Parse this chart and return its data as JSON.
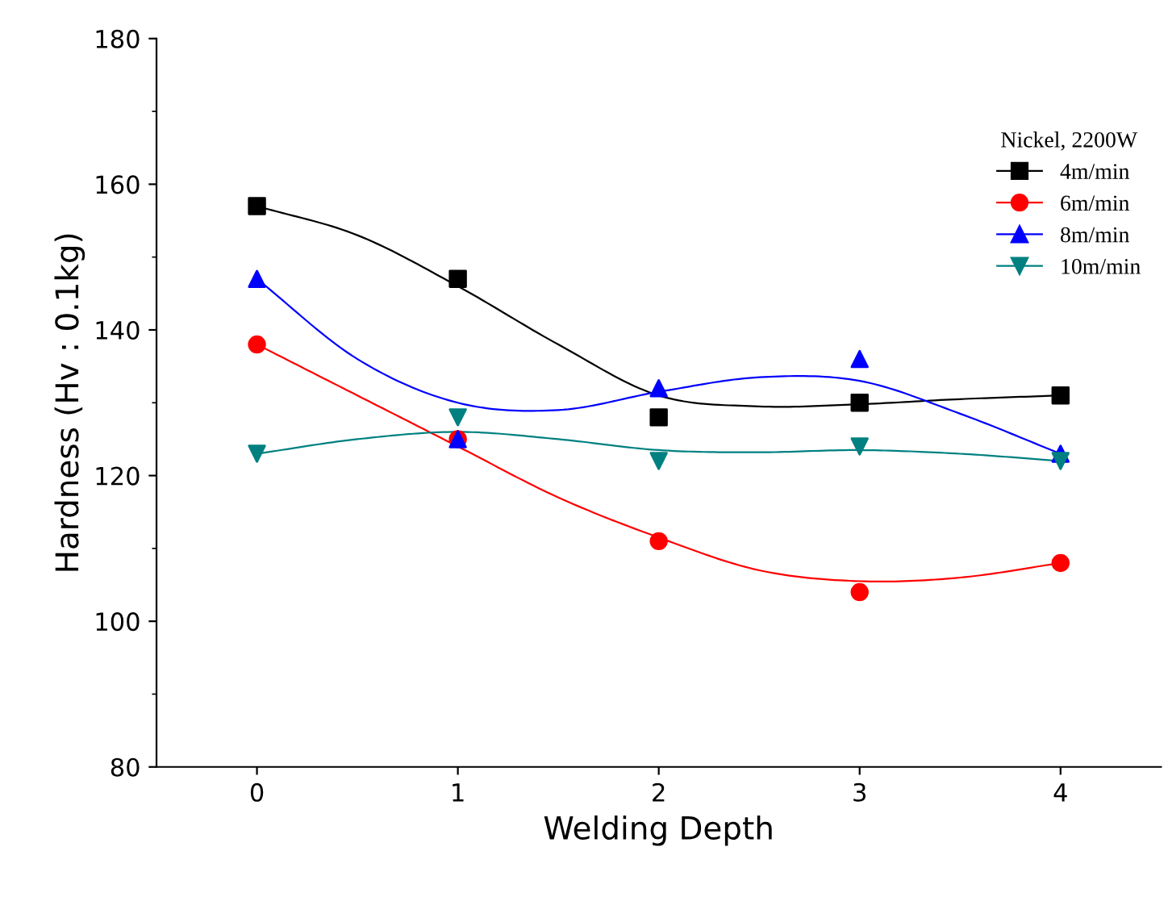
{
  "chart_data": {
    "type": "scatter",
    "xlabel": "Welding Depth",
    "ylabel": "Hardness (Hv : 0.1kg)",
    "legend_title": "Nickel, 2200W",
    "legend": "top right",
    "grid": false,
    "x": [
      0,
      1,
      2,
      3,
      4
    ],
    "xlim": [
      -0.5,
      4.5
    ],
    "xticks": [
      0,
      1,
      2,
      3,
      4
    ],
    "ylim": [
      80,
      180
    ],
    "yticks": [
      80,
      100,
      120,
      140,
      160,
      180
    ],
    "series": [
      {
        "name": "4m/min",
        "color": "#000000",
        "marker": "square",
        "values": [
          157,
          147,
          128,
          130,
          131
        ]
      },
      {
        "name": "6m/min",
        "color": "#ff0000",
        "marker": "circle",
        "values": [
          138,
          125,
          111,
          104,
          108
        ]
      },
      {
        "name": "8m/min",
        "color": "#0000ff",
        "marker": "triangle",
        "values": [
          147,
          125,
          132,
          136,
          123
        ]
      },
      {
        "name": "10m/min",
        "color": "#008080",
        "marker": "triangle_down",
        "values": [
          123,
          128,
          122,
          124,
          122
        ]
      },
      {
        "type": "line",
        "color": "#000000",
        "x": [
          0,
          0.5,
          1,
          1.5,
          2,
          2.5,
          3,
          3.5,
          4
        ],
        "values": [
          157,
          153,
          146,
          138,
          131,
          129.5,
          129.8,
          130.5,
          131
        ]
      },
      {
        "type": "line",
        "color": "#ff0000",
        "x": [
          0,
          0.5,
          1,
          1.5,
          2,
          2.5,
          3,
          3.5,
          4
        ],
        "values": [
          138,
          131,
          124,
          117,
          111.5,
          107,
          105.5,
          106,
          108
        ]
      },
      {
        "type": "line",
        "color": "#0000ff",
        "x": [
          0,
          0.5,
          1,
          1.5,
          2,
          2.5,
          3,
          3.5,
          4
        ],
        "values": [
          147,
          136,
          130,
          129,
          131.5,
          133.5,
          133,
          128.5,
          123
        ]
      },
      {
        "type": "line",
        "color": "#008080",
        "x": [
          0,
          0.5,
          1,
          1.5,
          2,
          2.5,
          3,
          3.5,
          4
        ],
        "values": [
          123,
          125,
          126,
          125,
          123.5,
          123.2,
          123.5,
          123,
          122
        ]
      }
    ]
  }
}
